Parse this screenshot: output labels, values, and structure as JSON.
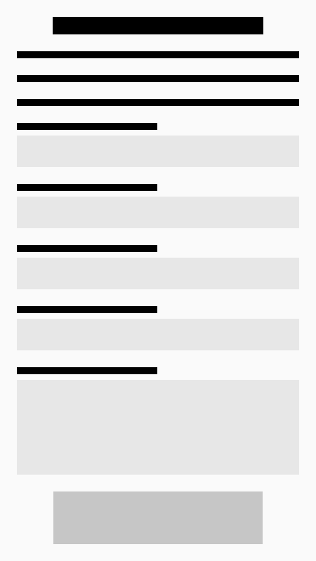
{
  "form": {
    "title": "",
    "intro_lines": [
      "",
      "",
      ""
    ],
    "fields": [
      {
        "label": "",
        "value": "",
        "placeholder": ""
      },
      {
        "label": "",
        "value": "",
        "placeholder": ""
      },
      {
        "label": "",
        "value": "",
        "placeholder": ""
      },
      {
        "label": "",
        "value": "",
        "placeholder": ""
      },
      {
        "label": "",
        "value": "",
        "placeholder": ""
      }
    ],
    "submit_label": ""
  },
  "colors": {
    "background": "#fafafa",
    "text_redacted": "#000000",
    "field_background": "#e7e7e7",
    "button_background": "#c6c6c6"
  }
}
